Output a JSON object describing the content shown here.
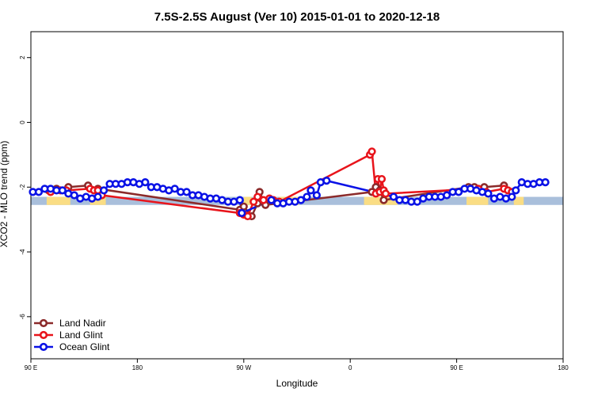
{
  "chart_data": {
    "type": "line",
    "title": "7.5S-2.5S August (Ver 10)   2015-01-01 to 2020-12-18",
    "xlabel": "Longitude",
    "ylabel": "XCO2 - MLO trend (ppm)",
    "xlim": [
      -90,
      180
    ],
    "ylim": [
      -7.3,
      2.8
    ],
    "x_ticks": [
      {
        "value": -90,
        "label": "90 E"
      },
      {
        "value": -36,
        "label": "180"
      },
      {
        "value": 18,
        "label": "90 W"
      },
      {
        "value": 72,
        "label": "0"
      },
      {
        "value": 126,
        "label": "90 E"
      },
      {
        "value": 180,
        "label": "180"
      }
    ],
    "y_ticks": [
      {
        "value": 2,
        "label": "2"
      },
      {
        "value": 0,
        "label": "0"
      },
      {
        "value": -2,
        "label": "-2"
      },
      {
        "value": -4,
        "label": "-4"
      },
      {
        "value": -6,
        "label": "-6"
      }
    ],
    "land_band": {
      "y_top": -2.3,
      "y_bottom": -2.55,
      "color": "#a9bfdb",
      "land_color": "#fadd84"
    },
    "land_regions": [
      [
        -82,
        -70
      ],
      [
        -60,
        -52
      ],
      [
        18,
        22
      ],
      [
        36,
        46
      ],
      [
        79,
        96
      ],
      [
        131,
        142
      ],
      [
        155,
        160
      ]
    ],
    "series": [
      {
        "name": "Land Nadir",
        "color": "#8b2a2a",
        "points": [
          [
            -81,
            -2.1
          ],
          [
            -77,
            -2.05
          ],
          [
            -71,
            -2.0
          ],
          [
            -61,
            -1.95
          ],
          [
            -56,
            -2.05
          ],
          [
            16,
            -2.7
          ],
          [
            18,
            -2.6
          ],
          [
            22,
            -2.9
          ],
          [
            25,
            -2.5
          ],
          [
            26,
            -2.15
          ],
          [
            29,
            -2.55
          ],
          [
            83,
            -2.15
          ],
          [
            85,
            -2.0
          ],
          [
            87,
            -2.1
          ],
          [
            89,
            -2.4
          ],
          [
            132,
            -2.0
          ],
          [
            135,
            -2.0
          ],
          [
            140,
            -2.0
          ],
          [
            150,
            -1.95
          ]
        ]
      },
      {
        "name": "Land Glint",
        "color": "#e8141b",
        "points": [
          [
            -80,
            -2.15
          ],
          [
            -75,
            -2.1
          ],
          [
            -72,
            -2.1
          ],
          [
            -60,
            -2.05
          ],
          [
            -58,
            -2.1
          ],
          [
            -56,
            -2.1
          ],
          [
            -54,
            -2.25
          ],
          [
            16,
            -2.8
          ],
          [
            18,
            -2.85
          ],
          [
            20,
            -2.9
          ],
          [
            23,
            -2.45
          ],
          [
            25,
            -2.3
          ],
          [
            28,
            -2.4
          ],
          [
            31,
            -2.35
          ],
          [
            33,
            -2.4
          ],
          [
            36,
            -2.45
          ],
          [
            82,
            -1.0
          ],
          [
            83,
            -0.9
          ],
          [
            85,
            -2.2
          ],
          [
            86,
            -1.75
          ],
          [
            87,
            -2.15
          ],
          [
            88,
            -1.75
          ],
          [
            89,
            -2.1
          ],
          [
            90,
            -2.2
          ],
          [
            137,
            -2.05
          ],
          [
            141,
            -2.15
          ],
          [
            150,
            -2.05
          ],
          [
            152,
            -2.1
          ],
          [
            154,
            -2.15
          ]
        ]
      },
      {
        "name": "Ocean Glint",
        "color": "#0a12e6",
        "points": [
          [
            -89,
            -2.15
          ],
          [
            -86,
            -2.15
          ],
          [
            -83,
            -2.05
          ],
          [
            -80,
            -2.05
          ],
          [
            -77,
            -2.1
          ],
          [
            -74,
            -2.1
          ],
          [
            -71,
            -2.2
          ],
          [
            -68,
            -2.25
          ],
          [
            -65,
            -2.35
          ],
          [
            -62,
            -2.3
          ],
          [
            -59,
            -2.35
          ],
          [
            -56,
            -2.3
          ],
          [
            -53,
            -2.1
          ],
          [
            -50,
            -1.9
          ],
          [
            -47,
            -1.9
          ],
          [
            -44,
            -1.9
          ],
          [
            -41,
            -1.85
          ],
          [
            -38,
            -1.85
          ],
          [
            -35,
            -1.9
          ],
          [
            -32,
            -1.85
          ],
          [
            -29,
            -2.0
          ],
          [
            -26,
            -2.0
          ],
          [
            -23,
            -2.05
          ],
          [
            -20,
            -2.1
          ],
          [
            -17,
            -2.05
          ],
          [
            -14,
            -2.15
          ],
          [
            -11,
            -2.15
          ],
          [
            -8,
            -2.25
          ],
          [
            -5,
            -2.25
          ],
          [
            -2,
            -2.3
          ],
          [
            1,
            -2.35
          ],
          [
            4,
            -2.35
          ],
          [
            7,
            -2.4
          ],
          [
            10,
            -2.45
          ],
          [
            13,
            -2.45
          ],
          [
            16,
            -2.4
          ],
          [
            17,
            -2.8
          ],
          [
            32,
            -2.4
          ],
          [
            35,
            -2.5
          ],
          [
            38,
            -2.5
          ],
          [
            41,
            -2.45
          ],
          [
            44,
            -2.45
          ],
          [
            47,
            -2.4
          ],
          [
            50,
            -2.3
          ],
          [
            52,
            -2.1
          ],
          [
            55,
            -2.25
          ],
          [
            57,
            -1.85
          ],
          [
            60,
            -1.8
          ],
          [
            94,
            -2.3
          ],
          [
            97,
            -2.4
          ],
          [
            100,
            -2.4
          ],
          [
            103,
            -2.45
          ],
          [
            106,
            -2.45
          ],
          [
            109,
            -2.35
          ],
          [
            112,
            -2.3
          ],
          [
            115,
            -2.3
          ],
          [
            118,
            -2.3
          ],
          [
            121,
            -2.25
          ],
          [
            124,
            -2.15
          ],
          [
            127,
            -2.15
          ],
          [
            130,
            -2.05
          ],
          [
            133,
            -2.05
          ],
          [
            136,
            -2.1
          ],
          [
            139,
            -2.15
          ],
          [
            142,
            -2.2
          ],
          [
            145,
            -2.35
          ],
          [
            148,
            -2.3
          ],
          [
            151,
            -2.35
          ],
          [
            154,
            -2.3
          ],
          [
            156,
            -2.1
          ],
          [
            159,
            -1.85
          ],
          [
            162,
            -1.9
          ],
          [
            165,
            -1.9
          ],
          [
            168,
            -1.85
          ],
          [
            171,
            -1.85
          ]
        ]
      }
    ],
    "legend": {
      "position": "bottom-left",
      "entries": [
        "Land Nadir",
        "Land Glint",
        "Ocean Glint"
      ]
    }
  }
}
